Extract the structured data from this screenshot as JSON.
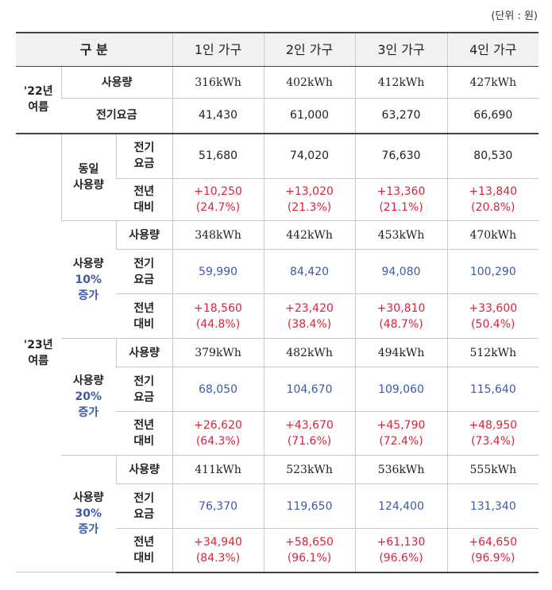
{
  "unit_note": "(단위 : 원)",
  "header": {
    "category": "구  분",
    "cols": [
      "1인 가구",
      "2인 가구",
      "3인 가구",
      "4인 가구"
    ]
  },
  "summer22": {
    "label": "'22년 여름",
    "usage_label": "사용량",
    "usage": [
      "316kWh",
      "402kWh",
      "412kWh",
      "427kWh"
    ],
    "bill_label": "전기요금",
    "bill": [
      "41,430",
      "61,000",
      "63,270",
      "66,690"
    ]
  },
  "summer23": {
    "label": "'23년 여름",
    "same_usage": {
      "label": "동일 사용량",
      "bill_label": "전기 요금",
      "bill": [
        "51,680",
        "74,020",
        "76,630",
        "80,530"
      ],
      "diff_label": "전년 대비",
      "diff": [
        "+10,250",
        "+13,020",
        "+13,360",
        "+13,840"
      ],
      "diff_pct": [
        "(24.7%)",
        "(21.3%)",
        "(21.1%)",
        "(20.8%)"
      ]
    },
    "inc10": {
      "label_a": "사용량",
      "label_b": "10%",
      "label_c": "증가",
      "usage_label": "사용량",
      "usage": [
        "348kWh",
        "442kWh",
        "453kWh",
        "470kWh"
      ],
      "bill_label": "전기 요금",
      "bill": [
        "59,990",
        "84,420",
        "94,080",
        "100,290"
      ],
      "diff_label": "전년 대비",
      "diff": [
        "+18,560",
        "+23,420",
        "+30,810",
        "+33,600"
      ],
      "diff_pct": [
        "(44.8%)",
        "(38.4%)",
        "(48.7%)",
        "(50.4%)"
      ]
    },
    "inc20": {
      "label_a": "사용량",
      "label_b": "20%",
      "label_c": "증가",
      "usage_label": "사용량",
      "usage": [
        "379kWh",
        "482kWh",
        "494kWh",
        "512kWh"
      ],
      "bill_label": "전기 요금",
      "bill": [
        "68,050",
        "104,670",
        "109,060",
        "115,640"
      ],
      "diff_label": "전년 대비",
      "diff": [
        "+26,620",
        "+43,670",
        "+45,790",
        "+48,950"
      ],
      "diff_pct": [
        "(64.3%)",
        "(71.6%)",
        "(72.4%)",
        "(73.4%)"
      ]
    },
    "inc30": {
      "label_a": "사용량",
      "label_b": "30%",
      "label_c": "증가",
      "usage_label": "사용량",
      "usage": [
        "411kWh",
        "523kWh",
        "536kWh",
        "555kWh"
      ],
      "bill_label": "전기 요금",
      "bill": [
        "76,370",
        "119,650",
        "124,400",
        "131,340"
      ],
      "diff_label": "전년 대비",
      "diff": [
        "+34,940",
        "+58,650",
        "+61,130",
        "+64,650"
      ],
      "diff_pct": [
        "(84.3%)",
        "(96.1%)",
        "(96.6%)",
        "(96.9%)"
      ]
    }
  },
  "colors": {
    "increase_blue": "#3d5aa8",
    "diff_red": "#d9233a"
  }
}
